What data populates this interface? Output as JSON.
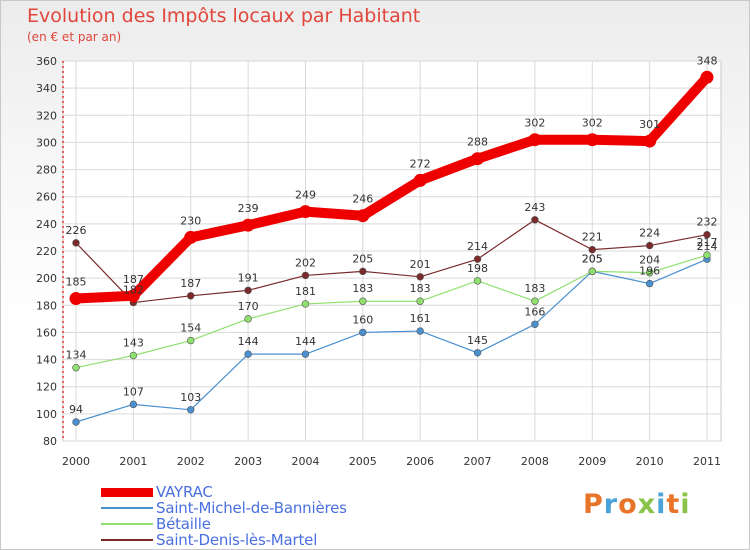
{
  "header": {
    "title": "Evolution des Impôts locaux par Habitant",
    "subtitle": "(en € et par an)"
  },
  "logo": {
    "text": "Proxiti",
    "letters": [
      "P",
      "r",
      "o",
      "x",
      "i",
      "t",
      "i"
    ]
  },
  "chart_data": {
    "type": "line",
    "title": "Evolution des Impôts locaux par Habitant",
    "subtitle": "(en € et par an)",
    "xlabel": "",
    "ylabel": "",
    "x": [
      "2000",
      "2001",
      "2002",
      "2003",
      "2004",
      "2005",
      "2006",
      "2007",
      "2008",
      "2009",
      "2010",
      "2011"
    ],
    "ylim": [
      80,
      360
    ],
    "yticks": [
      80,
      100,
      120,
      140,
      160,
      180,
      200,
      220,
      240,
      260,
      280,
      300,
      320,
      340,
      360
    ],
    "grid": true,
    "legend_position": "bottom-left",
    "series": [
      {
        "name": "VAYRAC",
        "color": "#ee0000",
        "emphasis": true,
        "values": [
          185,
          187,
          230,
          239,
          249,
          246,
          272,
          288,
          302,
          302,
          301,
          348
        ]
      },
      {
        "name": "Saint-Michel-de-Bannières",
        "color": "#4a90d0",
        "emphasis": false,
        "values": [
          94,
          107,
          103,
          144,
          144,
          160,
          161,
          145,
          166,
          205,
          196,
          214
        ]
      },
      {
        "name": "Bétaille",
        "color": "#90e070",
        "emphasis": false,
        "values": [
          134,
          143,
          154,
          170,
          181,
          183,
          183,
          198,
          183,
          205,
          204,
          217
        ]
      },
      {
        "name": "Saint-Denis-lès-Martel",
        "color": "#7a2a2a",
        "emphasis": false,
        "values": [
          226,
          182,
          187,
          191,
          202,
          205,
          201,
          214,
          243,
          221,
          224,
          232
        ]
      }
    ]
  }
}
